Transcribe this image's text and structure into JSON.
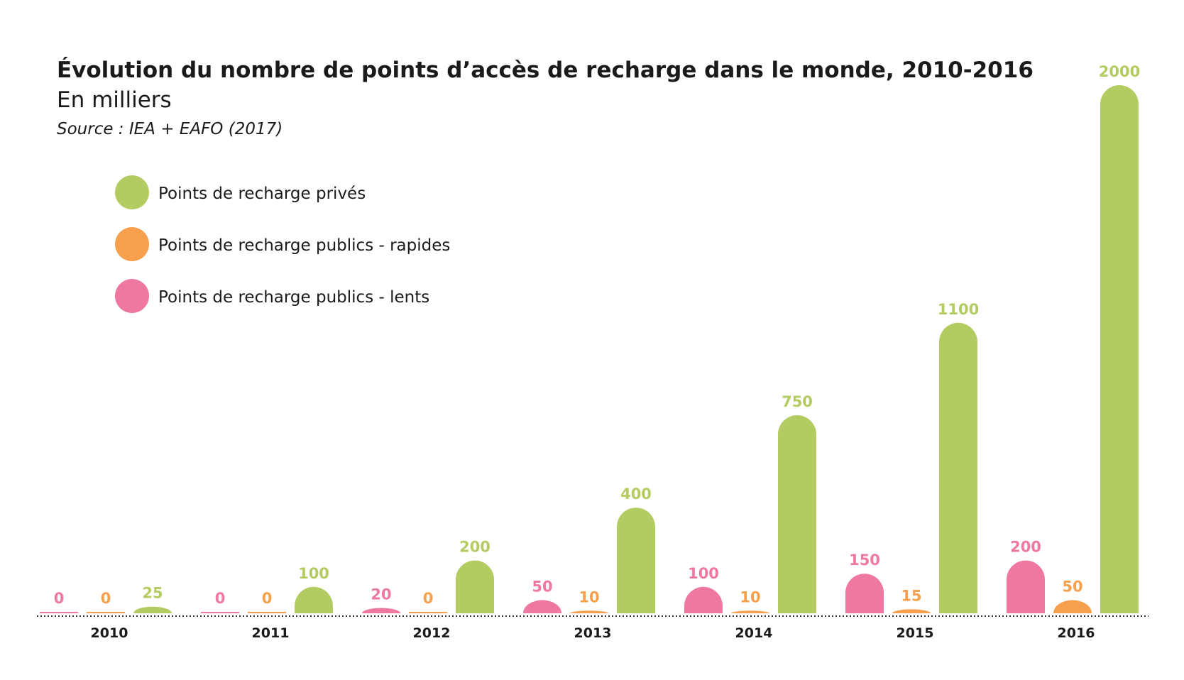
{
  "chart_data": {
    "type": "bar",
    "title": "Évolution du nombre de points d’accès de recharge dans le monde, 2010-2016",
    "subtitle": "En milliers",
    "source": "Source : IEA + EAFO (2017)",
    "xlabel": "",
    "ylabel": "",
    "ylim": [
      0,
      2000
    ],
    "grid": false,
    "legend_position": "top-left",
    "categories": [
      "2010",
      "2011",
      "2012",
      "2013",
      "2014",
      "2015",
      "2016"
    ],
    "series": [
      {
        "name": "Points de recharge publics - lents",
        "color": "#ef78a2",
        "values": [
          0,
          0,
          20,
          50,
          100,
          150,
          200
        ],
        "labels": [
          "0",
          "0",
          "20",
          "50",
          "100",
          "150",
          "200"
        ]
      },
      {
        "name": "Points de recharge publics - rapides",
        "color": "#f6a04d",
        "values": [
          0,
          0,
          0,
          10,
          10,
          15,
          50
        ],
        "labels": [
          "0",
          "0",
          "0",
          "10",
          "10",
          "15",
          "50"
        ]
      },
      {
        "name": "Points de recharge privés",
        "color": "#b3cc61",
        "values": [
          25,
          100,
          200,
          400,
          750,
          1100,
          2000
        ],
        "labels": [
          "25",
          "100",
          "200",
          "400",
          "750",
          "1100",
          "2000"
        ]
      }
    ],
    "legend": [
      {
        "label": "Points de recharge privés",
        "color": "#b3cc61"
      },
      {
        "label": "Points de recharge publics - rapides",
        "color": "#f6a04d"
      },
      {
        "label": "Points de recharge publics - lents",
        "color": "#ef78a2"
      }
    ]
  }
}
